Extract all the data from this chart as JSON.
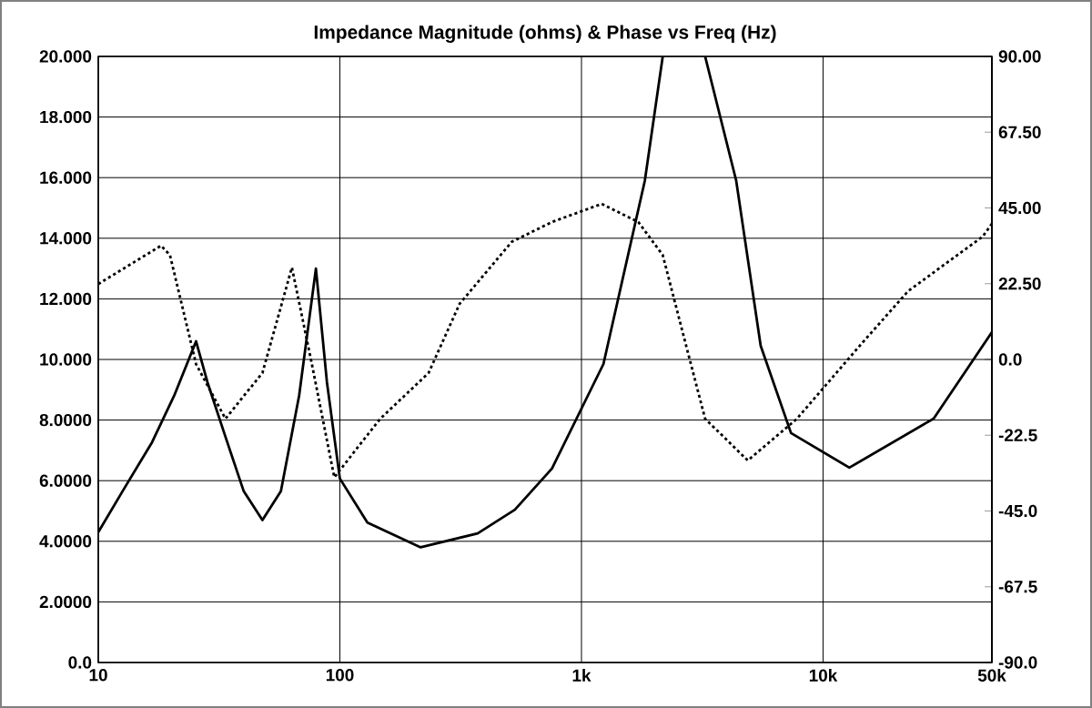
{
  "chart_data": {
    "type": "line",
    "title": "Impedance Magnitude (ohms) & Phase vs Freq (Hz)",
    "log": "x",
    "grid": true,
    "marker": "none",
    "xlim": [
      10,
      50000
    ],
    "xticks": [
      10,
      100,
      {
        "value": 1000,
        "label": "1k"
      },
      {
        "value": 10000,
        "label": "10k"
      },
      {
        "value": 50000,
        "label": "50k"
      }
    ],
    "ylim": [
      0,
      20
    ],
    "yticks": [
      {
        "value": 0,
        "label": "0.0"
      },
      {
        "value": 2,
        "label": "2.0000"
      },
      {
        "value": 4,
        "label": "4.0000"
      },
      {
        "value": 6,
        "label": "6.0000"
      },
      {
        "value": 8,
        "label": "8.0000"
      },
      {
        "value": 10,
        "label": "10.000"
      },
      {
        "value": 12,
        "label": "12.000"
      },
      {
        "value": 14,
        "label": "14.000"
      },
      {
        "value": 16,
        "label": "16.000"
      },
      {
        "value": 18,
        "label": "18.000"
      },
      {
        "value": 20,
        "label": "20.000"
      }
    ],
    "y2lim": [
      -90,
      90
    ],
    "y2ticks": [
      {
        "value": -90,
        "label": "-90.0"
      },
      {
        "value": -67.5,
        "label": "-67.5"
      },
      {
        "value": -45,
        "label": "-45.0"
      },
      {
        "value": -22.5,
        "label": "-22.5"
      },
      {
        "value": 0,
        "label": "0.0"
      },
      {
        "value": 22.5,
        "label": "22.50"
      },
      {
        "value": 45,
        "label": "45.00"
      },
      {
        "value": 67.5,
        "label": "67.50"
      },
      {
        "value": 90,
        "label": "90.00"
      }
    ],
    "series": [
      {
        "color": "#000000",
        "line_style": "solid",
        "x": [
          10,
          12.6,
          16.7,
          20.6,
          25.4,
          28.3,
          33.6,
          40,
          47.8,
          57,
          67.8,
          79.6,
          88.4,
          100,
          130,
          216,
          372,
          530,
          755,
          1233,
          1830,
          2170,
          2650,
          3250,
          4370,
          5520,
          7370,
          12850,
          28700,
          50000
        ],
        "values": [
          4.3,
          5.65,
          7.27,
          8.8,
          10.6,
          9.25,
          7.45,
          5.65,
          4.7,
          5.65,
          8.8,
          13.0,
          9.25,
          6.07,
          4.62,
          3.8,
          4.26,
          5.04,
          6.4,
          9.85,
          15.9,
          20,
          null,
          20,
          15.9,
          10.45,
          7.57,
          6.43,
          8.05,
          10.9
        ]
      },
      {
        "color": "#000000",
        "line_style": "dotted",
        "axis": "y2",
        "x": [
          10,
          18.2,
          19.8,
          25.4,
          33.6,
          47.8,
          63.3,
          76.6,
          94.8,
          147,
          233,
          313,
          514,
          754,
          1213,
          1720,
          2170,
          2750,
          3250,
          4880,
          7800,
          14200,
          22500,
          45800,
          50000
        ],
        "values": [
          22.4,
          33.8,
          31,
          -1.4,
          -17.6,
          -4,
          27.3,
          -1.4,
          -35,
          -17.6,
          -4,
          16.5,
          34.9,
          40.8,
          46.2,
          40.8,
          31,
          2.4,
          -17.6,
          -30,
          -17.6,
          4.1,
          20.3,
          36.5,
          40.3
        ]
      }
    ]
  }
}
